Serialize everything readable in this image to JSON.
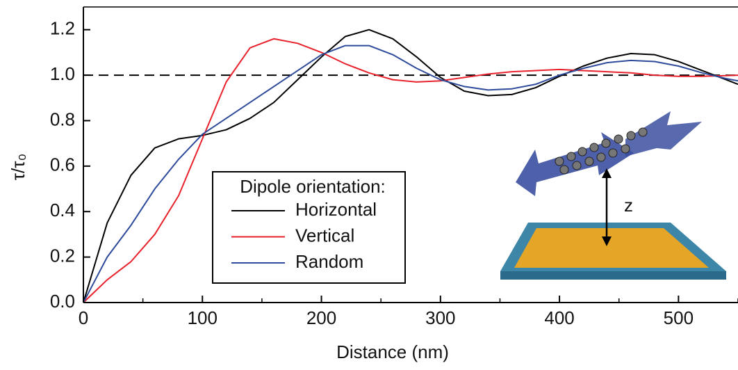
{
  "chart_data": {
    "type": "line",
    "x_label": "Distance (nm)",
    "y_label": "τ/τ₀",
    "x": [
      0,
      20,
      40,
      60,
      80,
      100,
      120,
      140,
      160,
      180,
      200,
      220,
      240,
      260,
      280,
      300,
      320,
      340,
      360,
      380,
      400,
      420,
      440,
      460,
      480,
      500,
      520,
      540,
      550
    ],
    "series": [
      {
        "name": "Horizontal",
        "color": "#000000",
        "values": [
          0,
          0.35,
          0.56,
          0.68,
          0.72,
          0.735,
          0.76,
          0.81,
          0.88,
          0.98,
          1.08,
          1.17,
          1.2,
          1.16,
          1.08,
          0.99,
          0.93,
          0.91,
          0.915,
          0.945,
          0.995,
          1.04,
          1.075,
          1.095,
          1.09,
          1.06,
          1.02,
          0.98,
          0.96
        ]
      },
      {
        "name": "Vertical",
        "color": "#e8212b",
        "values": [
          0,
          0.1,
          0.18,
          0.3,
          0.47,
          0.72,
          0.97,
          1.12,
          1.16,
          1.14,
          1.1,
          1.05,
          1.01,
          0.98,
          0.97,
          0.975,
          0.99,
          1.005,
          1.015,
          1.02,
          1.025,
          1.02,
          1.015,
          1.01,
          1.0,
          0.995,
          0.995,
          0.998,
          1.0
        ]
      },
      {
        "name": "Random",
        "color": "#2e4a9a",
        "values": [
          0,
          0.2,
          0.34,
          0.5,
          0.63,
          0.74,
          0.81,
          0.88,
          0.95,
          1.02,
          1.09,
          1.13,
          1.13,
          1.09,
          1.03,
          0.98,
          0.95,
          0.935,
          0.94,
          0.96,
          1.0,
          1.03,
          1.055,
          1.065,
          1.06,
          1.04,
          1.01,
          0.985,
          0.975
        ]
      }
    ],
    "xlim": [
      0,
      550
    ],
    "ylim": [
      0,
      1.3
    ],
    "xticks": [
      0,
      100,
      200,
      300,
      400,
      500
    ],
    "xminorticks": [
      50,
      150,
      250,
      350,
      450,
      550
    ],
    "yticks": [
      {
        "value": 0,
        "label": "0.0"
      },
      0.2,
      0.4,
      0.6,
      0.8,
      {
        "value": 1,
        "label": "1.0"
      },
      1.2
    ],
    "reference_line": 1,
    "legend_title": "Dipole orientation:",
    "inset_label": "z"
  }
}
